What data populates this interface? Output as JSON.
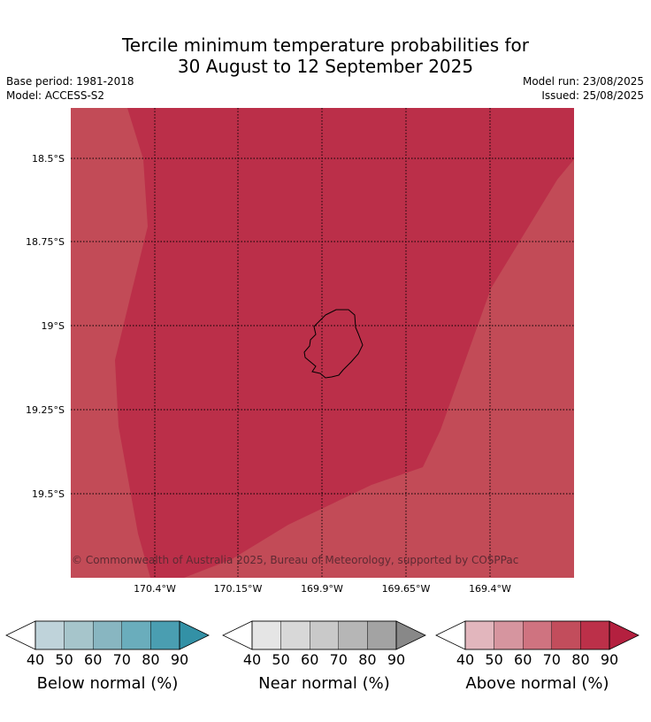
{
  "title": {
    "line1": "Tercile minimum temperature probabilities for",
    "line2": "30 August to 12 September 2025"
  },
  "meta": {
    "base_period": "Base period: 1981-2018",
    "model": "Model: ACCESS-S2",
    "model_run": "Model run: 23/08/2025",
    "issued": "Issued: 25/08/2025"
  },
  "map": {
    "copyright": "© Commonwealth of Australia 2025, Bureau of Meteorology, supported by COSPPac",
    "lat_labels": [
      "18.5°S",
      "18.75°S",
      "19°S",
      "19.25°S",
      "19.5°S"
    ],
    "lon_labels": [
      "170.4°W",
      "170.15°W",
      "169.9°W",
      "169.65°W",
      "169.4°W"
    ],
    "fill_colors": {
      "above_70_80": "#c24b57",
      "above_80_90": "#bb2f49"
    },
    "gridline_style": "dotted",
    "island_outline_color": "#000000"
  },
  "colorbars": [
    {
      "label": "Below normal (%)",
      "ticks": [
        "40",
        "50",
        "60",
        "70",
        "80",
        "90"
      ],
      "colors": [
        "#bfd3da",
        "#a6c5cb",
        "#88b6c1",
        "#6aadbc",
        "#4a9eb1",
        "#3391a6"
      ]
    },
    {
      "label": "Near normal (%)",
      "ticks": [
        "40",
        "50",
        "60",
        "70",
        "80",
        "90"
      ],
      "colors": [
        "#e5e5e5",
        "#d8d8d8",
        "#c9c9c9",
        "#b6b6b6",
        "#a3a3a3",
        "#888888"
      ]
    },
    {
      "label": "Above normal (%)",
      "ticks": [
        "40",
        "50",
        "60",
        "70",
        "80",
        "90"
      ],
      "colors": [
        "#e2b6bd",
        "#d6959f",
        "#cf7380",
        "#c24d5c",
        "#bc3049",
        "#b4203f"
      ]
    }
  ]
}
